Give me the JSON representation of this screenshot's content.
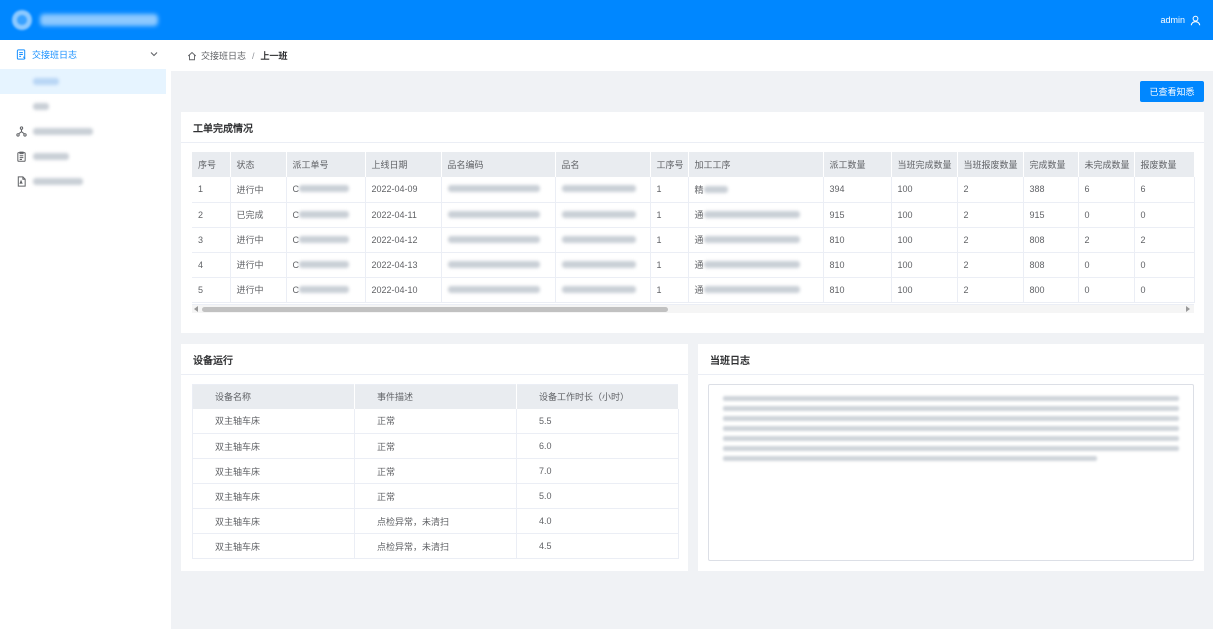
{
  "header": {
    "user_name": "admin",
    "user_icon": "user-icon"
  },
  "sidebar": {
    "group_label": "交接班日志",
    "group_icon": "log-icon",
    "sub_items": [
      "上一班",
      "本班"
    ],
    "items": [
      {
        "icon": "network-icon"
      },
      {
        "icon": "clipboard-icon"
      },
      {
        "icon": "document-icon"
      }
    ]
  },
  "breadcrumb": {
    "home_icon": "home-icon",
    "parent": "交接班日志",
    "separator": "/",
    "current": "上一班"
  },
  "actions": {
    "acknowledge_label": "已查看知悉"
  },
  "work_orders": {
    "title": "工单完成情况",
    "columns": [
      "序号",
      "状态",
      "派工单号",
      "上线日期",
      "品名编码",
      "品名",
      "工序号",
      "加工工序",
      "派工数量",
      "当班完成数量",
      "当班报废数量",
      "完成数量",
      "未完成数量",
      "报废数量"
    ],
    "rows": [
      {
        "no": "1",
        "status": "进行中",
        "order_prefix": "C",
        "date": "2022-04-09",
        "step_no": "1",
        "process_prefix": "精",
        "dispatch": "394",
        "shift_done": "100",
        "shift_scrap": "2",
        "done": "388",
        "undone": "6",
        "scrap": "6"
      },
      {
        "no": "2",
        "status": "已完成",
        "order_prefix": "C",
        "date": "2022-04-11",
        "step_no": "1",
        "process_prefix": "通",
        "dispatch": "915",
        "shift_done": "100",
        "shift_scrap": "2",
        "done": "915",
        "undone": "0",
        "scrap": "0"
      },
      {
        "no": "3",
        "status": "进行中",
        "order_prefix": "C",
        "date": "2022-04-12",
        "step_no": "1",
        "process_prefix": "通",
        "dispatch": "810",
        "shift_done": "100",
        "shift_scrap": "2",
        "done": "808",
        "undone": "2",
        "scrap": "2"
      },
      {
        "no": "4",
        "status": "进行中",
        "order_prefix": "C",
        "date": "2022-04-13",
        "step_no": "1",
        "process_prefix": "通",
        "dispatch": "810",
        "shift_done": "100",
        "shift_scrap": "2",
        "done": "808",
        "undone": "0",
        "scrap": "0"
      },
      {
        "no": "5",
        "status": "进行中",
        "order_prefix": "C",
        "date": "2022-04-10",
        "step_no": "1",
        "process_prefix": "通",
        "dispatch": "810",
        "shift_done": "100",
        "shift_scrap": "2",
        "done": "800",
        "undone": "0",
        "scrap": "0"
      }
    ]
  },
  "equipment": {
    "title": "设备运行",
    "columns": [
      "设备名称",
      "事件描述",
      "设备工作时长（小时）"
    ],
    "rows": [
      {
        "name": "双主轴车床",
        "event": "正常",
        "hours": "5.5"
      },
      {
        "name": "双主轴车床",
        "event": "正常",
        "hours": "6.0"
      },
      {
        "name": "双主轴车床",
        "event": "正常",
        "hours": "7.0"
      },
      {
        "name": "双主轴车床",
        "event": "正常",
        "hours": "5.0"
      },
      {
        "name": "双主轴车床",
        "event": "点检异常，未清扫",
        "hours": "4.0"
      },
      {
        "name": "双主轴车床",
        "event": "点检异常，未清扫",
        "hours": "4.5"
      }
    ]
  },
  "shift_log": {
    "title": "当班日志"
  },
  "colors": {
    "primary": "#0087ff",
    "active_bg": "#e6f4ff",
    "menu_active_text": "#1890ff",
    "table_header_bg": "#e9ecf0",
    "page_bg": "#f0f2f5"
  }
}
